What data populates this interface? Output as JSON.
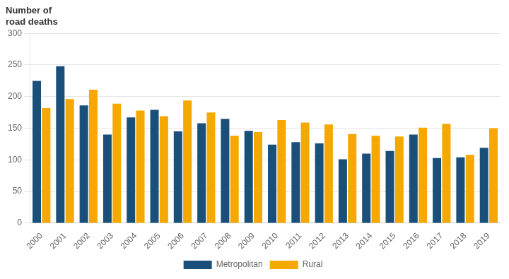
{
  "chart_data": {
    "type": "bar",
    "annotations": [
      "Number of",
      "road deaths"
    ],
    "categories": [
      "2000",
      "2001",
      "2002",
      "2003",
      "2004",
      "2005",
      "2006",
      "2007",
      "2008",
      "2009",
      "2010",
      "2011",
      "2012",
      "2013",
      "2014",
      "2015",
      "2016",
      "2017",
      "2018",
      "2019"
    ],
    "series": [
      {
        "name": "Metropolitan",
        "color": "#1a4f7a",
        "values": [
          225,
          248,
          186,
          140,
          167,
          179,
          145,
          158,
          165,
          146,
          124,
          128,
          126,
          101,
          110,
          114,
          140,
          103,
          104,
          119
        ]
      },
      {
        "name": "Rural",
        "color": "#f5a800",
        "values": [
          182,
          196,
          211,
          189,
          178,
          169,
          194,
          175,
          138,
          144,
          163,
          159,
          156,
          141,
          138,
          137,
          151,
          157,
          108,
          150
        ]
      }
    ],
    "ylim": [
      0,
      300
    ],
    "yticks": [
      0,
      50,
      100,
      150,
      200,
      250,
      300
    ],
    "grid": true,
    "legend": "bottom"
  }
}
